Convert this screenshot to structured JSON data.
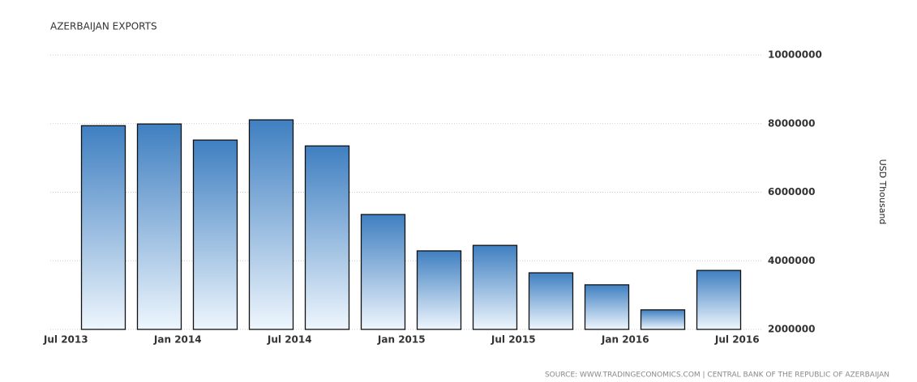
{
  "chart_data": {
    "type": "bar",
    "title": "AZERBAIJAN EXPORTS",
    "y_axis_label": "USD Thousand",
    "source": "SOURCE: WWW.TRADINGECONOMICS.COM | CENTRAL BANK OF THE REPUBLIC OF AZERBAIJAN",
    "categories": [
      null,
      null,
      null,
      null,
      null,
      null,
      null,
      null,
      null,
      null,
      null,
      null
    ],
    "values": [
      7940000,
      7990000,
      7520000,
      8110000,
      7350000,
      5350000,
      4290000,
      4450000,
      3650000,
      3300000,
      2570000,
      3720000
    ],
    "xtick_labels": [
      "Jul 2013",
      "Jan 2014",
      "Jul 2014",
      "Jan 2015",
      "Jul 2015",
      "Jan 2016",
      "Jul 2016"
    ],
    "color": "#3f7fc1",
    "ylim": [
      2000000,
      10000000
    ],
    "yticks": [
      2000000,
      4000000,
      6000000,
      8000000,
      10000000
    ],
    "grid": true
  }
}
